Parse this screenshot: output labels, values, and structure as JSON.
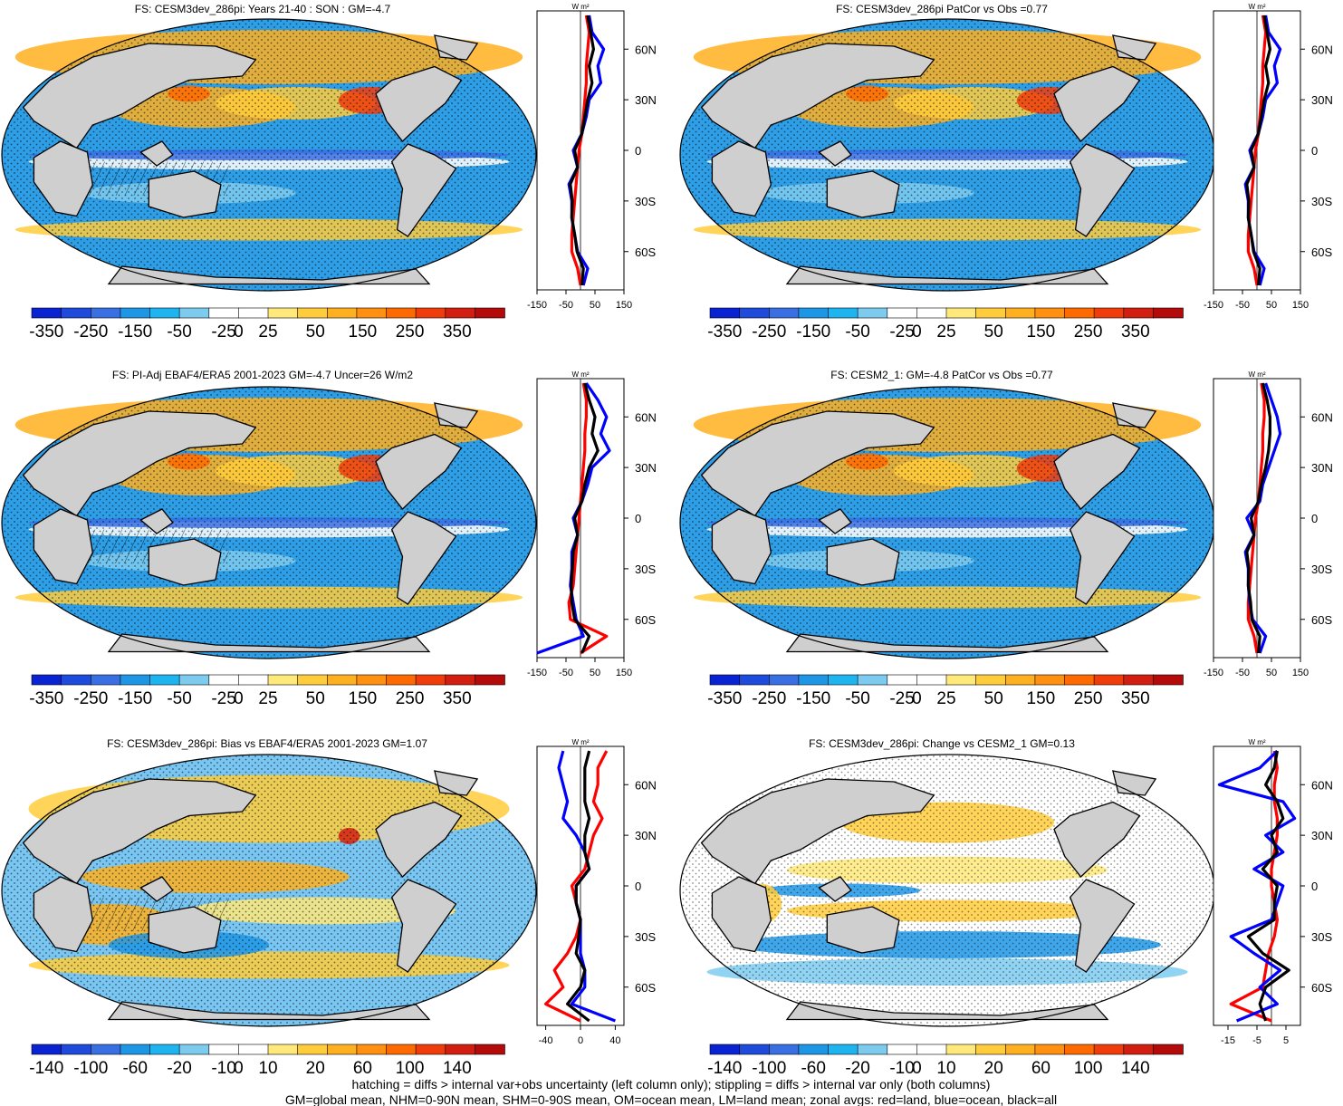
{
  "colors": {
    "land": "#cfcfcf",
    "ocean_base": "#2e9fe6",
    "land_line": "red",
    "ocean_line": "blue",
    "all_line": "black"
  },
  "units_label": "W m²",
  "panels": [
    {
      "id": "p1",
      "title": "FS: CESM3dev_286pi: Years 21-40 : SON : GM=-4.7",
      "cbar_labels": [
        "-350",
        "-250",
        "-150",
        "-50",
        "-25",
        "0",
        "25",
        "50",
        "150",
        "250",
        "350"
      ],
      "zonal_ticks": [
        "-150",
        "-50",
        "50",
        "150"
      ],
      "zonal_range": [
        -150,
        150
      ],
      "lat_labels": [
        "60N",
        "30N",
        "0",
        "30S",
        "60S"
      ],
      "hatching": true
    },
    {
      "id": "p2",
      "title": "FS: CESM3dev_286pi PatCor vs Obs =0.77",
      "cbar_labels": [
        "-350",
        "-250",
        "-150",
        "-50",
        "-25",
        "0",
        "25",
        "50",
        "150",
        "250",
        "350"
      ],
      "zonal_ticks": [
        "-150",
        "-50",
        "50",
        "150"
      ],
      "zonal_range": [
        -150,
        150
      ],
      "lat_labels": [
        "60N",
        "30N",
        "0",
        "30S",
        "60S"
      ],
      "hatching": false
    },
    {
      "id": "p3",
      "title": "FS: PI-Adj EBAF4/ERA5 2001-2023 GM=-4.7 Uncer=26 W/m2",
      "cbar_labels": [
        "-350",
        "-250",
        "-150",
        "-50",
        "-25",
        "0",
        "25",
        "50",
        "150",
        "250",
        "350"
      ],
      "zonal_ticks": [
        "-150",
        "-50",
        "50",
        "150"
      ],
      "zonal_range": [
        -150,
        150
      ],
      "lat_labels": [
        "60N",
        "30N",
        "0",
        "30S",
        "60S"
      ],
      "hatching": true
    },
    {
      "id": "p4",
      "title": "FS: CESM2_1: GM=-4.8 PatCor vs Obs =0.77",
      "cbar_labels": [
        "-350",
        "-250",
        "-150",
        "-50",
        "-25",
        "0",
        "25",
        "50",
        "150",
        "250",
        "350"
      ],
      "zonal_ticks": [
        "-150",
        "-50",
        "50",
        "150"
      ],
      "zonal_range": [
        -150,
        150
      ],
      "lat_labels": [
        "60N",
        "30N",
        "0",
        "30S",
        "60S"
      ],
      "hatching": false
    },
    {
      "id": "p5",
      "title": "FS: CESM3dev_286pi: Bias vs EBAF4/ERA5 2001-2023  GM=1.07",
      "cbar_labels": [
        "-140",
        "-100",
        "-60",
        "-20",
        "-10",
        "0",
        "10",
        "20",
        "60",
        "100",
        "140"
      ],
      "zonal_ticks": [
        "-40",
        "0",
        "40"
      ],
      "zonal_range": [
        -50,
        50
      ],
      "lat_labels": [
        "60N",
        "30N",
        "0",
        "30S",
        "60S"
      ],
      "hatching": true
    },
    {
      "id": "p6",
      "title": "FS: CESM3dev_286pi: Change vs CESM2_1 GM=0.13",
      "cbar_labels": [
        "-140",
        "-100",
        "-60",
        "-20",
        "-10",
        "0",
        "10",
        "20",
        "60",
        "100",
        "140"
      ],
      "zonal_ticks": [
        "-15",
        "-5",
        "5"
      ],
      "zonal_range": [
        -20,
        10
      ],
      "lat_labels": [
        "60N",
        "30N",
        "0",
        "30S",
        "60S"
      ],
      "hatching": false
    }
  ],
  "footer": {
    "line1": "hatching = diffs > internal var+obs uncertainty (left column only); stippling = diffs > internal var only (both columns)",
    "line2": "GM=global mean, NHM=0-90N mean, SHM=0-90S mean, OM=ocean mean, LM=land mean; zonal avgs: red=land, blue=ocean, black=all"
  },
  "chart_data": [
    {
      "type": "heatmap",
      "title": "FS: CESM3dev_286pi: Years 21-40 : SON : GM=-4.7",
      "colorbar": [
        -350,
        -250,
        -150,
        -50,
        -25,
        0,
        25,
        50,
        150,
        250,
        350
      ],
      "zonal": {
        "xlim": [
          -150,
          150
        ],
        "lat": [
          80,
          70,
          60,
          50,
          40,
          30,
          20,
          10,
          0,
          -10,
          -20,
          -30,
          -40,
          -50,
          -60,
          -70,
          -80
        ],
        "ocean": [
          30,
          40,
          80,
          60,
          70,
          30,
          20,
          5,
          -25,
          -10,
          -40,
          -30,
          -30,
          -20,
          -10,
          25,
          10
        ],
        "land": [
          20,
          30,
          25,
          20,
          20,
          15,
          10,
          5,
          -5,
          -10,
          -15,
          -20,
          -25,
          -30,
          -30,
          -10,
          0
        ],
        "all": [
          25,
          35,
          45,
          30,
          40,
          25,
          15,
          5,
          -20,
          -10,
          -35,
          -28,
          -30,
          -20,
          -12,
          10,
          5
        ]
      }
    },
    {
      "type": "heatmap",
      "title": "FS: CESM3dev_286pi PatCor vs Obs =0.77",
      "colorbar": [
        -350,
        -250,
        -150,
        -50,
        -25,
        0,
        25,
        50,
        150,
        250,
        350
      ],
      "zonal": {
        "xlim": [
          -150,
          150
        ],
        "lat": [
          80,
          70,
          60,
          50,
          40,
          30,
          20,
          10,
          0,
          -10,
          -20,
          -30,
          -40,
          -50,
          -60,
          -70,
          -80
        ],
        "ocean": [
          30,
          40,
          80,
          60,
          70,
          30,
          20,
          5,
          -25,
          -10,
          -40,
          -30,
          -30,
          -20,
          -10,
          25,
          10
        ],
        "land": [
          20,
          30,
          25,
          20,
          20,
          15,
          10,
          5,
          -5,
          -10,
          -15,
          -20,
          -25,
          -30,
          -30,
          -10,
          0
        ],
        "all": [
          25,
          35,
          45,
          30,
          40,
          25,
          15,
          5,
          -20,
          -10,
          -35,
          -28,
          -30,
          -20,
          -12,
          10,
          5
        ]
      }
    },
    {
      "type": "heatmap",
      "title": "FS: PI-Adj EBAF4/ERA5 2001-2023 GM=-4.7 Uncer=26 W/m2",
      "colorbar": [
        -350,
        -250,
        -150,
        -50,
        -25,
        0,
        25,
        50,
        150,
        250,
        350
      ],
      "zonal": {
        "xlim": [
          -150,
          150
        ],
        "lat": [
          80,
          70,
          60,
          50,
          40,
          30,
          20,
          10,
          0,
          -10,
          -20,
          -30,
          -40,
          -50,
          -60,
          -70,
          -80
        ],
        "ocean": [
          20,
          60,
          90,
          70,
          100,
          40,
          25,
          5,
          -25,
          -10,
          -30,
          -30,
          -35,
          -25,
          -15,
          10,
          -150
        ],
        "land": [
          10,
          20,
          20,
          15,
          15,
          10,
          5,
          0,
          -5,
          -10,
          -15,
          -20,
          -25,
          -40,
          -35,
          90,
          0
        ],
        "all": [
          15,
          30,
          50,
          40,
          60,
          30,
          15,
          5,
          -20,
          -10,
          -25,
          -28,
          -32,
          -30,
          -20,
          30,
          5
        ]
      }
    },
    {
      "type": "heatmap",
      "title": "FS: CESM2_1: GM=-4.8 PatCor vs Obs =0.77",
      "colorbar": [
        -350,
        -250,
        -150,
        -50,
        -25,
        0,
        25,
        50,
        150,
        250,
        350
      ],
      "zonal": {
        "xlim": [
          -150,
          150
        ],
        "lat": [
          80,
          70,
          60,
          50,
          40,
          30,
          20,
          10,
          0,
          -10,
          -20,
          -30,
          -40,
          -50,
          -60,
          -70,
          -80
        ],
        "ocean": [
          30,
          50,
          70,
          80,
          60,
          40,
          20,
          10,
          -35,
          -10,
          -40,
          -30,
          -30,
          -25,
          -15,
          30,
          10
        ],
        "land": [
          15,
          25,
          25,
          20,
          20,
          15,
          10,
          5,
          -5,
          -10,
          -15,
          -20,
          -25,
          -30,
          -30,
          -10,
          0
        ],
        "all": [
          20,
          35,
          45,
          45,
          40,
          30,
          15,
          5,
          -20,
          -10,
          -35,
          -28,
          -30,
          -22,
          -18,
          10,
          5
        ]
      }
    },
    {
      "type": "heatmap",
      "title": "FS: CESM3dev_286pi: Bias vs EBAF4/ERA5 2001-2023  GM=1.07",
      "colorbar": [
        -140,
        -100,
        -60,
        -20,
        -10,
        0,
        10,
        20,
        60,
        100,
        140
      ],
      "zonal": {
        "xlim": [
          -50,
          50
        ],
        "lat": [
          80,
          70,
          60,
          50,
          40,
          30,
          20,
          10,
          0,
          -10,
          -20,
          -30,
          -40,
          -50,
          -60,
          -70,
          -80
        ],
        "ocean": [
          -20,
          -25,
          -20,
          -15,
          -20,
          -5,
          5,
          10,
          -5,
          -5,
          0,
          0,
          0,
          5,
          5,
          -10,
          40
        ],
        "land": [
          30,
          20,
          20,
          15,
          25,
          15,
          10,
          5,
          -10,
          -5,
          0,
          -5,
          -15,
          -30,
          -20,
          -40,
          0
        ],
        "all": [
          10,
          5,
          5,
          5,
          10,
          5,
          5,
          10,
          -5,
          -5,
          0,
          -2,
          -5,
          5,
          0,
          -15,
          10
        ]
      }
    },
    {
      "type": "heatmap",
      "title": "FS: CESM3dev_286pi: Change vs CESM2_1 GM=0.13",
      "colorbar": [
        -140,
        -100,
        -60,
        -20,
        -10,
        0,
        10,
        20,
        60,
        100,
        140
      ],
      "zonal": {
        "xlim": [
          -20,
          10
        ],
        "lat": [
          80,
          70,
          60,
          50,
          40,
          30,
          20,
          10,
          0,
          -10,
          -20,
          -30,
          -40,
          -50,
          -60,
          -70,
          -80
        ],
        "ocean": [
          2,
          -4,
          -18,
          4,
          8,
          -2,
          4,
          -6,
          4,
          2,
          0,
          -14,
          -6,
          3,
          -4,
          2,
          -12
        ],
        "land": [
          1,
          2,
          1,
          1,
          2,
          2,
          1,
          0,
          0,
          1,
          2,
          1,
          -1,
          -2,
          -3,
          -14,
          0
        ],
        "all": [
          2,
          1,
          -2,
          2,
          4,
          0,
          2,
          -3,
          2,
          1,
          1,
          -8,
          -3,
          6,
          -2,
          -4,
          -2
        ]
      }
    }
  ]
}
